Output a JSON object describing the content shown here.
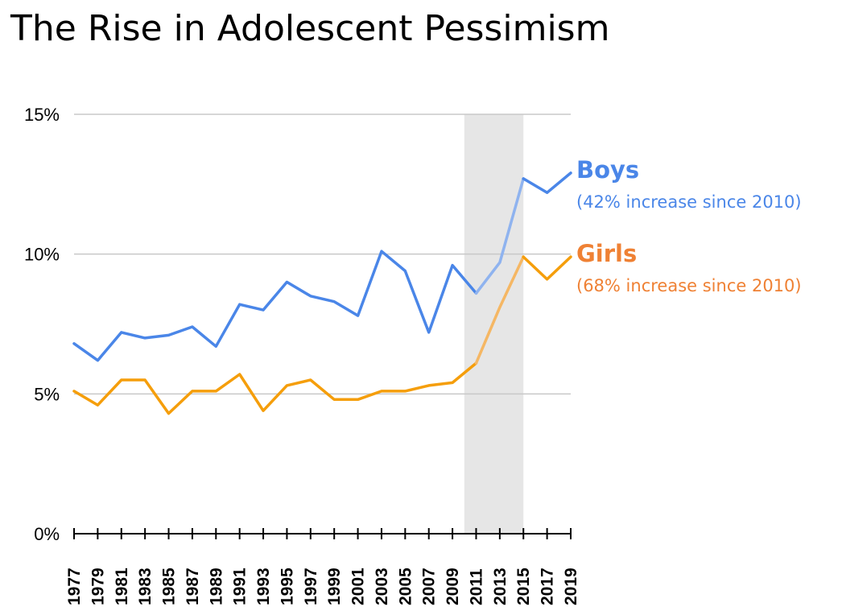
{
  "chart_data": {
    "type": "line",
    "title": "The Rise in Adolescent Pessimism",
    "x": [
      1977,
      1979,
      1981,
      1983,
      1985,
      1987,
      1989,
      1991,
      1993,
      1995,
      1997,
      1999,
      2001,
      2003,
      2005,
      2007,
      2009,
      2011,
      2013,
      2015,
      2017,
      2019
    ],
    "x_tick_labels": [
      "1977",
      "1979",
      "1981",
      "1983",
      "1985",
      "1987",
      "1989",
      "1991",
      "1993",
      "1995",
      "1997",
      "1999",
      "2001",
      "2003",
      "2005",
      "2007",
      "2009",
      "2011",
      "2013",
      "2015",
      "2017",
      "2019"
    ],
    "series": [
      {
        "name": "Boys",
        "note": "(42% increase since 2010)",
        "color": "#4a86e8",
        "highlight_color": "#8fb3ef",
        "values": [
          6.8,
          6.2,
          7.2,
          7.0,
          7.1,
          7.4,
          6.7,
          8.2,
          8.0,
          9.0,
          8.5,
          8.3,
          7.8,
          10.1,
          9.4,
          7.2,
          9.6,
          8.6,
          9.7,
          12.7,
          12.2,
          12.9
        ]
      },
      {
        "name": "Girls",
        "note": "(68% increase since 2010)",
        "color": "#f59e0b",
        "highlight_color": "#f5b764",
        "label_color": "#ef8134",
        "values": [
          5.1,
          4.6,
          5.5,
          5.5,
          4.3,
          5.1,
          5.1,
          5.7,
          4.4,
          5.3,
          5.5,
          4.8,
          4.8,
          5.1,
          5.1,
          5.3,
          5.4,
          6.1,
          8.1,
          9.9,
          9.1,
          9.9
        ]
      }
    ],
    "y_ticks": [
      {
        "value": 0,
        "label": "0%"
      },
      {
        "value": 5,
        "label": "5%"
      },
      {
        "value": 10,
        "label": "10%"
      },
      {
        "value": 15,
        "label": "15%"
      }
    ],
    "ylim": [
      0,
      15
    ],
    "xlim": [
      1977,
      2019
    ],
    "highlight_range": [
      2010,
      2015
    ],
    "highlight_color": "#e6e6e6",
    "grid": true,
    "xlabel": "",
    "ylabel": ""
  }
}
